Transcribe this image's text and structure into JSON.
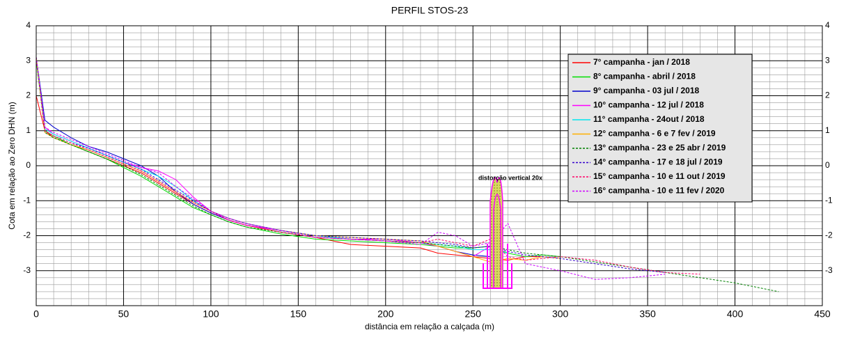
{
  "chart_data": {
    "type": "line",
    "title": "PERFIL STOS-23",
    "x_label": "distância em relação a calçada (m)",
    "y_label": "Cota em relação ao Zero DHN (m)",
    "annotation": "distorção vertical 20x",
    "xlim": [
      0,
      450
    ],
    "xticks": [
      0,
      50,
      100,
      150,
      200,
      250,
      300,
      350,
      400,
      450
    ],
    "ylim": [
      -4,
      4
    ],
    "yticks": [
      -3,
      -2,
      -1,
      0,
      1,
      2,
      3,
      4
    ],
    "grid": true,
    "minor_grid": true,
    "right_axis_labels": true,
    "legend_position": "upper right",
    "x": [
      0,
      5,
      10,
      20,
      30,
      40,
      50,
      60,
      70,
      80,
      90,
      100,
      110,
      120,
      140,
      160,
      180,
      200,
      220,
      230,
      240,
      250,
      260,
      270,
      280,
      290,
      300,
      320,
      340,
      360,
      380,
      400,
      425
    ],
    "series": [
      {
        "name": "7° campanha - jan / 2018",
        "color": "#ff0000",
        "dashed": false,
        "values": [
          2.0,
          1.0,
          0.8,
          0.6,
          0.4,
          0.2,
          0.0,
          -0.2,
          -0.5,
          -0.8,
          -1.1,
          -1.35,
          -1.55,
          -1.7,
          -1.9,
          -2.05,
          -2.25,
          -2.3,
          -2.35,
          -2.5,
          -2.55,
          -2.6,
          -2.65,
          -2.7,
          -2.6,
          -2.6,
          null,
          null,
          null,
          null,
          null,
          null,
          null
        ]
      },
      {
        "name": "8° campanha - abril / 2018",
        "color": "#00dd00",
        "dashed": false,
        "values": [
          3.0,
          1.0,
          0.85,
          0.6,
          0.4,
          0.2,
          -0.05,
          -0.3,
          -0.6,
          -0.9,
          -1.2,
          -1.4,
          -1.6,
          -1.75,
          -1.95,
          -2.1,
          -2.15,
          -2.2,
          -2.25,
          -2.3,
          -2.35,
          -2.35,
          -2.3,
          -2.5,
          -2.6,
          -2.55,
          -2.6,
          null,
          null,
          null,
          null,
          null,
          null
        ]
      },
      {
        "name": "9° campanha - 03 jul / 2018",
        "color": "#0000cc",
        "dashed": false,
        "values": [
          3.1,
          1.3,
          1.1,
          0.8,
          0.55,
          0.4,
          0.2,
          0.0,
          -0.3,
          -0.75,
          -1.1,
          -1.35,
          -1.55,
          -1.7,
          -1.85,
          -2.0,
          -2.1,
          -2.15,
          -2.2,
          -2.3,
          -2.45,
          -2.55,
          -2.6,
          null,
          null,
          null,
          null,
          null,
          null,
          null,
          null,
          null,
          null
        ]
      },
      {
        "name": "10° campanha - 12 jul / 2018",
        "color": "#ff00ff",
        "dashed": false,
        "values": [
          3.1,
          1.1,
          0.9,
          0.7,
          0.5,
          0.3,
          0.1,
          -0.05,
          -0.15,
          -0.4,
          -0.9,
          -1.3,
          -1.55,
          -1.7,
          -1.85,
          -2.0,
          -2.1,
          -2.1,
          -2.2,
          -2.3,
          -2.45,
          -2.6,
          -2.3,
          null,
          null,
          null,
          null,
          null,
          null,
          null,
          null,
          null,
          null
        ]
      },
      {
        "name": "11° campanha - 24out / 2018",
        "color": "#00e5ee",
        "dashed": false,
        "values": [
          3.1,
          1.05,
          0.9,
          0.7,
          0.5,
          0.3,
          0.1,
          -0.1,
          -0.3,
          -0.6,
          -1.0,
          -1.3,
          -1.5,
          -1.65,
          -1.85,
          -2.0,
          -2.1,
          -2.15,
          -2.2,
          -2.25,
          -2.3,
          -2.4,
          -2.4,
          -2.5,
          null,
          null,
          null,
          null,
          null,
          null,
          null,
          null,
          null
        ]
      },
      {
        "name": "12° campanha - 6 e 7 fev / 2019",
        "color": "#ffb000",
        "dashed": false,
        "values": [
          3.1,
          0.95,
          0.8,
          0.6,
          0.45,
          0.25,
          0.05,
          -0.15,
          -0.45,
          -0.75,
          -1.05,
          -1.3,
          -1.5,
          -1.65,
          -1.85,
          -2.0,
          -2.05,
          -2.1,
          -2.15,
          -2.3,
          -2.45,
          -2.6,
          -2.75,
          -2.65,
          -2.7,
          -2.6,
          -2.65,
          null,
          null,
          null,
          null,
          null,
          null
        ]
      },
      {
        "name": "13° campanha - 23 e 25 abr / 2019",
        "color": "#008000",
        "dashed": true,
        "values": [
          3.1,
          0.95,
          0.8,
          0.6,
          0.4,
          0.2,
          0.0,
          -0.25,
          -0.55,
          -0.85,
          -1.15,
          -1.4,
          -1.6,
          -1.75,
          -1.9,
          -2.05,
          -2.1,
          -2.15,
          -2.2,
          -2.25,
          -2.3,
          -2.35,
          -2.3,
          -2.4,
          -2.5,
          -2.55,
          -2.6,
          -2.75,
          -2.9,
          -3.05,
          -3.2,
          -3.35,
          -3.6
        ]
      },
      {
        "name": "14° campanha - 17 e 18 jul / 2019",
        "color": "#3300cc",
        "dashed": true,
        "values": [
          3.1,
          1.0,
          0.85,
          0.65,
          0.5,
          0.3,
          0.1,
          -0.1,
          -0.4,
          -0.7,
          -1.0,
          -1.3,
          -1.5,
          -1.65,
          -1.85,
          -2.0,
          -2.05,
          -2.1,
          -2.15,
          -2.2,
          -2.25,
          -2.35,
          -2.3,
          -2.45,
          -2.55,
          -2.6,
          -2.65,
          -2.8,
          -2.95,
          -3.05,
          null,
          null,
          null
        ]
      },
      {
        "name": "15° campanha - 10 e 11 out / 2019",
        "color": "#ff0066",
        "dashed": true,
        "values": [
          3.1,
          1.0,
          0.85,
          0.65,
          0.45,
          0.25,
          0.05,
          -0.15,
          -0.45,
          -0.75,
          -1.05,
          -1.3,
          -1.55,
          -1.7,
          -1.9,
          -2.05,
          -2.1,
          -2.15,
          -2.2,
          -2.1,
          -2.2,
          -2.3,
          -2.1,
          -2.6,
          -2.7,
          -2.65,
          -2.6,
          -2.7,
          -2.9,
          -3.05,
          -3.1,
          null,
          null
        ]
      },
      {
        "name": "16° campanha - 10 e 11 fev / 2020",
        "color": "#cc00ff",
        "dashed": true,
        "values": [
          3.1,
          1.1,
          0.95,
          0.75,
          0.55,
          0.35,
          0.15,
          -0.05,
          -0.2,
          -0.6,
          -0.95,
          -1.3,
          -1.5,
          -1.65,
          -1.85,
          -2.05,
          -2.1,
          -2.15,
          -2.25,
          -1.9,
          -2.0,
          -2.3,
          -2.2,
          -1.65,
          -2.8,
          -2.9,
          -3.0,
          -3.25,
          -3.2,
          -3.1,
          null,
          null,
          null
        ]
      }
    ]
  }
}
